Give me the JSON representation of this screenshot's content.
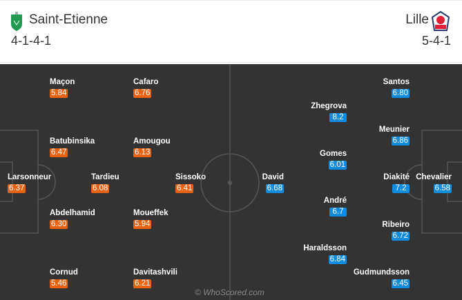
{
  "home": {
    "name": "Saint-Etienne",
    "formation": "4-1-4-1",
    "color": "#e8620f",
    "crest": "saint-etienne-crest",
    "players": [
      {
        "name": "Maçon",
        "rating": "5.84"
      },
      {
        "name": "Cafaro",
        "rating": "6.76"
      },
      {
        "name": "Batubinsika",
        "rating": "6.47"
      },
      {
        "name": "Amougou",
        "rating": "6.13"
      },
      {
        "name": "Larsonneur",
        "rating": "6.37"
      },
      {
        "name": "Tardieu",
        "rating": "6.08"
      },
      {
        "name": "Sissoko",
        "rating": "6.41"
      },
      {
        "name": "Abdelhamid",
        "rating": "6.30"
      },
      {
        "name": "Moueffek",
        "rating": "5.94"
      },
      {
        "name": "Cornud",
        "rating": "5.46"
      },
      {
        "name": "Davitashvili",
        "rating": "6.21"
      }
    ]
  },
  "away": {
    "name": "Lille",
    "formation": "5-4-1",
    "color": "#0f8be0",
    "crest": "lille-crest",
    "players": [
      {
        "name": "Santos",
        "rating": "6.80"
      },
      {
        "name": "Zhegrova",
        "rating": "8.2"
      },
      {
        "name": "Meunier",
        "rating": "6.86"
      },
      {
        "name": "Gomes",
        "rating": "6.01"
      },
      {
        "name": "Diakité",
        "rating": "7.2"
      },
      {
        "name": "Chevalier",
        "rating": "6.58"
      },
      {
        "name": "David",
        "rating": "6.68"
      },
      {
        "name": "André",
        "rating": "6.7"
      },
      {
        "name": "Ribeiro",
        "rating": "6.72"
      },
      {
        "name": "Haraldsson",
        "rating": "6.84"
      },
      {
        "name": "Gudmundsson",
        "rating": "6.45"
      }
    ]
  },
  "watermark": "© WhoScored.com"
}
